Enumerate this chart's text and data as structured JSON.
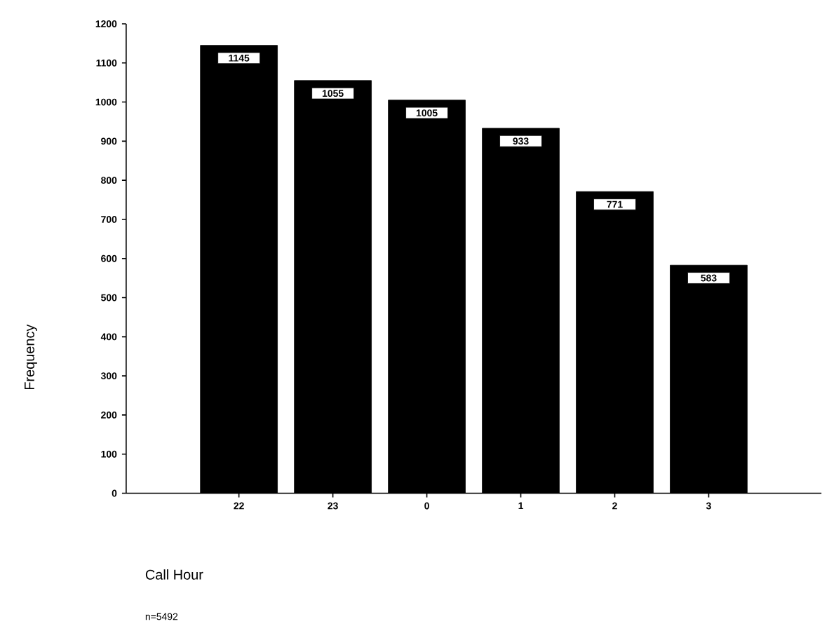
{
  "chart_data": {
    "type": "bar",
    "categories": [
      "22",
      "23",
      "0",
      "1",
      "2",
      "3"
    ],
    "values": [
      1145,
      1055,
      1005,
      933,
      771,
      583
    ],
    "color": "#000000",
    "xlabel": "Call Hour",
    "ylabel": "Frequency",
    "annotations": [
      "n=5492"
    ],
    "ylim": [
      0,
      1200
    ],
    "yticks": [
      0,
      100,
      200,
      300,
      400,
      500,
      600,
      700,
      800,
      900,
      1000,
      1100,
      1200
    ],
    "data_labels": true
  }
}
